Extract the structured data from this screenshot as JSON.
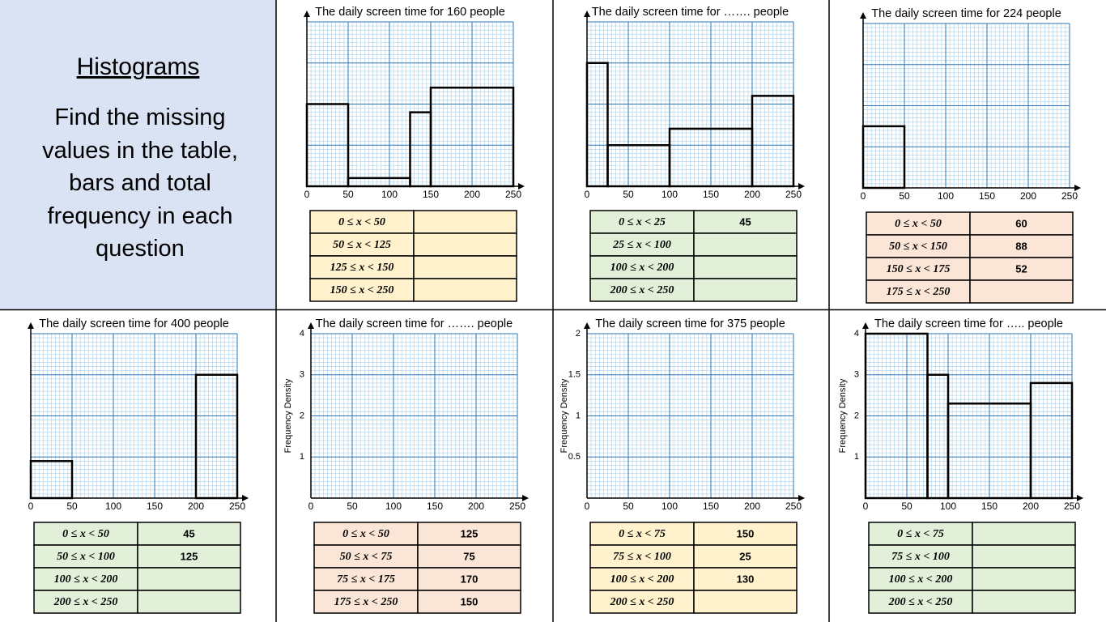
{
  "header": {
    "title": "Histograms",
    "instructions": "Find the missing values in the table, bars and total frequency in each question"
  },
  "chart_data": [
    {
      "type": "histogram",
      "title": "The daily screen time for 160 people",
      "bins": [
        0,
        50,
        125,
        150,
        250
      ],
      "values": [
        0.8,
        0.08,
        0.72,
        0.96
      ],
      "xlim": [
        0,
        250
      ],
      "xticks": [
        0,
        50,
        100,
        150,
        200,
        250
      ],
      "ylim": [
        0,
        1.6
      ],
      "table_color": "#fff2cc",
      "table": {
        "rows": [
          [
            "0 ≤ x < 50",
            null
          ],
          [
            "50 ≤ x < 125",
            null
          ],
          [
            "125 ≤ x < 150",
            null
          ],
          [
            "150 ≤ x < 250",
            null
          ]
        ]
      }
    },
    {
      "type": "histogram",
      "title": "The daily screen time for ……. people",
      "bins": [
        0,
        25,
        100,
        200,
        250
      ],
      "values": [
        1.8,
        0.6,
        0.84,
        1.32
      ],
      "xlim": [
        0,
        250
      ],
      "xticks": [
        0,
        50,
        100,
        150,
        200,
        250
      ],
      "ylim": [
        0,
        2.4
      ],
      "table_color": "#e2f0d9",
      "table": {
        "rows": [
          [
            "0 ≤ x < 25",
            45
          ],
          [
            "25 ≤ x < 100",
            null
          ],
          [
            "100 ≤ x < 200",
            null
          ],
          [
            "200 ≤ x < 250",
            null
          ]
        ]
      }
    },
    {
      "type": "histogram",
      "title": "The daily screen time for 224 people",
      "bins": [
        0,
        50
      ],
      "values": [
        1.2
      ],
      "xlim": [
        0,
        250
      ],
      "xticks": [
        0,
        50,
        100,
        150,
        200,
        250
      ],
      "ylim": [
        0,
        3.2
      ],
      "table_color": "#fbe5d6",
      "table": {
        "rows": [
          [
            "0 ≤ x < 50",
            60
          ],
          [
            "50 ≤ x < 150",
            88
          ],
          [
            "150 ≤ x < 175",
            52
          ],
          [
            "175 ≤ x < 250",
            null
          ]
        ]
      }
    },
    {
      "type": "histogram",
      "title": "The daily screen time for 400 people",
      "bins": [
        0,
        50,
        100,
        200,
        250
      ],
      "values": [
        0.9,
        null,
        null,
        3
      ],
      "xlim": [
        0,
        250
      ],
      "xticks": [
        0,
        50,
        100,
        150,
        200,
        250
      ],
      "ylim": [
        0,
        4
      ],
      "table_color": "#e2f0d9",
      "table": {
        "rows": [
          [
            "0 ≤ x < 50",
            45
          ],
          [
            "50 ≤ x < 100",
            125
          ],
          [
            "100 ≤ x < 200",
            null
          ],
          [
            "200 ≤ x < 250",
            null
          ]
        ]
      }
    },
    {
      "type": "histogram",
      "title": "The daily screen time for ……. people",
      "y_label": "Frequency Density",
      "xlim": [
        0,
        250
      ],
      "xticks": [
        0,
        50,
        100,
        150,
        200,
        250
      ],
      "ylim": [
        0,
        4
      ],
      "yticks": [
        1,
        2,
        3,
        4
      ],
      "table_color": "#fbe5d6",
      "table": {
        "rows": [
          [
            "0 ≤ x < 50",
            125
          ],
          [
            "50 ≤ x < 75",
            75
          ],
          [
            "75 ≤ x < 175",
            170
          ],
          [
            "175 ≤ x < 250",
            150
          ]
        ]
      }
    },
    {
      "type": "histogram",
      "title": "The daily screen time for 375 people",
      "y_label": "Frequency Density",
      "xlim": [
        0,
        250
      ],
      "xticks": [
        0,
        50,
        100,
        150,
        200,
        250
      ],
      "ylim": [
        0,
        2
      ],
      "yticks": [
        0.5,
        1,
        1.5,
        2
      ],
      "table_color": "#fff2cc",
      "table": {
        "rows": [
          [
            "0 ≤ x < 75",
            150
          ],
          [
            "75 ≤ x < 100",
            25
          ],
          [
            "100 ≤ x < 200",
            130
          ],
          [
            "200 ≤ x < 250",
            null
          ]
        ]
      }
    },
    {
      "type": "histogram",
      "title": "The daily screen time for ….. people",
      "y_label": "Frequency Density",
      "bins": [
        0,
        75,
        100,
        200,
        250
      ],
      "values": [
        4,
        3,
        2.3,
        2.8
      ],
      "xlim": [
        0,
        250
      ],
      "xticks": [
        0,
        50,
        100,
        150,
        200,
        250
      ],
      "ylim": [
        0,
        4
      ],
      "yticks": [
        1,
        2,
        3,
        4
      ],
      "table_color": "#e2f0d9",
      "table": {
        "rows": [
          [
            "0 ≤ x < 75",
            null
          ],
          [
            "75 ≤ x < 100",
            null
          ],
          [
            "100 ≤ x < 200",
            null
          ],
          [
            "200 ≤ x < 250",
            null
          ]
        ]
      }
    }
  ]
}
